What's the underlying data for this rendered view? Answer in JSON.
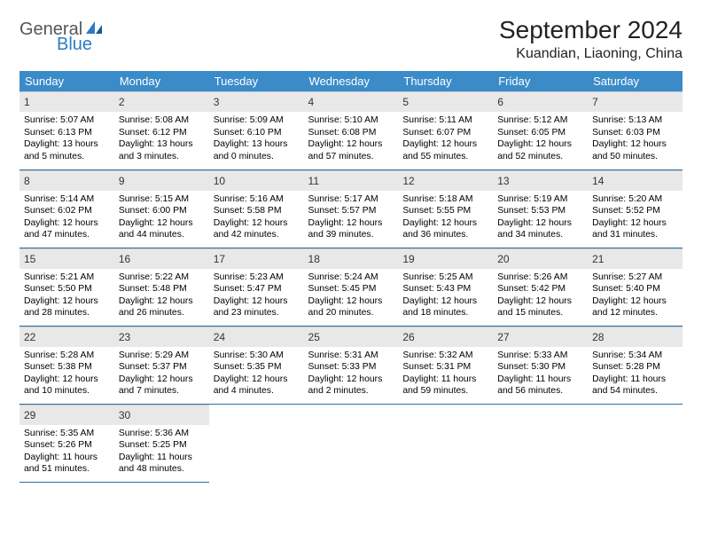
{
  "brand": {
    "word1": "General",
    "word2": "Blue"
  },
  "title": "September 2024",
  "location": "Kuandian, Liaoning, China",
  "weekday_header_bg": "#3b8bc9",
  "weekdays": [
    "Sunday",
    "Monday",
    "Tuesday",
    "Wednesday",
    "Thursday",
    "Friday",
    "Saturday"
  ],
  "days": [
    {
      "n": "1",
      "sr": "5:07 AM",
      "ss": "6:13 PM",
      "dl": "13 hours and 5 minutes."
    },
    {
      "n": "2",
      "sr": "5:08 AM",
      "ss": "6:12 PM",
      "dl": "13 hours and 3 minutes."
    },
    {
      "n": "3",
      "sr": "5:09 AM",
      "ss": "6:10 PM",
      "dl": "13 hours and 0 minutes."
    },
    {
      "n": "4",
      "sr": "5:10 AM",
      "ss": "6:08 PM",
      "dl": "12 hours and 57 minutes."
    },
    {
      "n": "5",
      "sr": "5:11 AM",
      "ss": "6:07 PM",
      "dl": "12 hours and 55 minutes."
    },
    {
      "n": "6",
      "sr": "5:12 AM",
      "ss": "6:05 PM",
      "dl": "12 hours and 52 minutes."
    },
    {
      "n": "7",
      "sr": "5:13 AM",
      "ss": "6:03 PM",
      "dl": "12 hours and 50 minutes."
    },
    {
      "n": "8",
      "sr": "5:14 AM",
      "ss": "6:02 PM",
      "dl": "12 hours and 47 minutes."
    },
    {
      "n": "9",
      "sr": "5:15 AM",
      "ss": "6:00 PM",
      "dl": "12 hours and 44 minutes."
    },
    {
      "n": "10",
      "sr": "5:16 AM",
      "ss": "5:58 PM",
      "dl": "12 hours and 42 minutes."
    },
    {
      "n": "11",
      "sr": "5:17 AM",
      "ss": "5:57 PM",
      "dl": "12 hours and 39 minutes."
    },
    {
      "n": "12",
      "sr": "5:18 AM",
      "ss": "5:55 PM",
      "dl": "12 hours and 36 minutes."
    },
    {
      "n": "13",
      "sr": "5:19 AM",
      "ss": "5:53 PM",
      "dl": "12 hours and 34 minutes."
    },
    {
      "n": "14",
      "sr": "5:20 AM",
      "ss": "5:52 PM",
      "dl": "12 hours and 31 minutes."
    },
    {
      "n": "15",
      "sr": "5:21 AM",
      "ss": "5:50 PM",
      "dl": "12 hours and 28 minutes."
    },
    {
      "n": "16",
      "sr": "5:22 AM",
      "ss": "5:48 PM",
      "dl": "12 hours and 26 minutes."
    },
    {
      "n": "17",
      "sr": "5:23 AM",
      "ss": "5:47 PM",
      "dl": "12 hours and 23 minutes."
    },
    {
      "n": "18",
      "sr": "5:24 AM",
      "ss": "5:45 PM",
      "dl": "12 hours and 20 minutes."
    },
    {
      "n": "19",
      "sr": "5:25 AM",
      "ss": "5:43 PM",
      "dl": "12 hours and 18 minutes."
    },
    {
      "n": "20",
      "sr": "5:26 AM",
      "ss": "5:42 PM",
      "dl": "12 hours and 15 minutes."
    },
    {
      "n": "21",
      "sr": "5:27 AM",
      "ss": "5:40 PM",
      "dl": "12 hours and 12 minutes."
    },
    {
      "n": "22",
      "sr": "5:28 AM",
      "ss": "5:38 PM",
      "dl": "12 hours and 10 minutes."
    },
    {
      "n": "23",
      "sr": "5:29 AM",
      "ss": "5:37 PM",
      "dl": "12 hours and 7 minutes."
    },
    {
      "n": "24",
      "sr": "5:30 AM",
      "ss": "5:35 PM",
      "dl": "12 hours and 4 minutes."
    },
    {
      "n": "25",
      "sr": "5:31 AM",
      "ss": "5:33 PM",
      "dl": "12 hours and 2 minutes."
    },
    {
      "n": "26",
      "sr": "5:32 AM",
      "ss": "5:31 PM",
      "dl": "11 hours and 59 minutes."
    },
    {
      "n": "27",
      "sr": "5:33 AM",
      "ss": "5:30 PM",
      "dl": "11 hours and 56 minutes."
    },
    {
      "n": "28",
      "sr": "5:34 AM",
      "ss": "5:28 PM",
      "dl": "11 hours and 54 minutes."
    },
    {
      "n": "29",
      "sr": "5:35 AM",
      "ss": "5:26 PM",
      "dl": "11 hours and 51 minutes."
    },
    {
      "n": "30",
      "sr": "5:36 AM",
      "ss": "5:25 PM",
      "dl": "11 hours and 48 minutes."
    }
  ],
  "labels": {
    "sunrise": "Sunrise:",
    "sunset": "Sunset:",
    "daylight": "Daylight:"
  },
  "styling": {
    "body_bg": "#ffffff",
    "header_text_color": "#ffffff",
    "daynum_bg": "#e8e8e8",
    "cell_border_color": "#2c6ea0",
    "title_fontsize": 28,
    "location_fontsize": 16,
    "weekday_fontsize": 13,
    "daynum_fontsize": 12,
    "dayline_fontsize": 10.4
  },
  "grid": {
    "rows": 5,
    "cols": 7,
    "start_offset": 0,
    "total_days": 30
  }
}
